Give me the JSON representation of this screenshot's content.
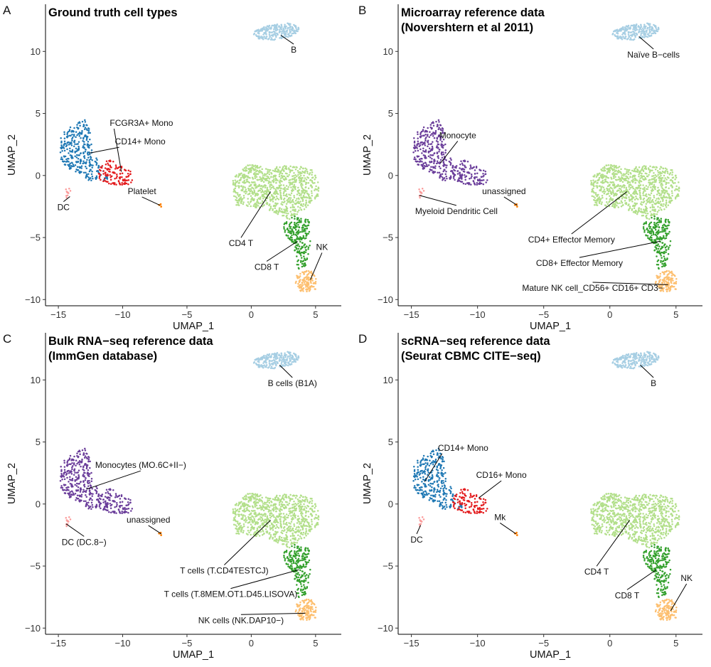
{
  "colors": {
    "B": "#a6cee3",
    "CD14_Mono": "#1f78b4",
    "FCGR3A_Mono": "#e31a1c",
    "Monocyte_purple": "#6a3d9a",
    "DC": "#fb9a99",
    "Platelet": "#ff7f00",
    "CD4_T": "#b2df8a",
    "CD8_T": "#33a02c",
    "NK": "#fdbf6f"
  },
  "chart_data": [
    {
      "panel": "A",
      "type": "scatter",
      "title_lines": [
        "Ground truth cell types"
      ],
      "xlabel": "UMAP_1",
      "ylabel": "UMAP_2",
      "xlim": [
        -16,
        7
      ],
      "ylim": [
        -10.5,
        13.8
      ],
      "xticks": [
        -15,
        -10,
        -5,
        0,
        5
      ],
      "yticks": [
        -10,
        -5,
        0,
        5,
        10
      ],
      "grid": false,
      "legend": "none",
      "clusters": [
        {
          "name": "B",
          "color_key": "B"
        },
        {
          "name": "CD14+ Mono",
          "color_key": "CD14_Mono"
        },
        {
          "name": "FCGR3A+ Mono",
          "color_key": "FCGR3A_Mono"
        },
        {
          "name": "DC",
          "color_key": "DC"
        },
        {
          "name": "Platelet",
          "color_key": "Platelet"
        },
        {
          "name": "CD4 T",
          "color_key": "CD4_T"
        },
        {
          "name": "CD8 T",
          "color_key": "CD8_T"
        },
        {
          "name": "NK",
          "color_key": "NK"
        }
      ],
      "annotations": [
        {
          "text": "B",
          "x": 3.3,
          "y": 9.9,
          "ax": 2.3,
          "ay": 11.3,
          "anchor": "middle"
        },
        {
          "text": "FCGR3A+ Mono",
          "x": -11.0,
          "y": 4.0,
          "ax": -10.1,
          "ay": 0.3,
          "anchor": "start"
        },
        {
          "text": "CD14+ Mono",
          "x": -10.6,
          "y": 2.5,
          "ax": -12.6,
          "ay": 1.8,
          "anchor": "start"
        },
        {
          "text": "Platelet",
          "x": -8.5,
          "y": -1.5,
          "ax": -7.1,
          "ay": -2.4,
          "anchor": "middle"
        },
        {
          "text": "DC",
          "x": -14.6,
          "y": -2.8,
          "ax": -14.1,
          "ay": -1.7,
          "anchor": "middle"
        },
        {
          "text": "CD4 T",
          "x": -0.8,
          "y": -5.7,
          "ax": 1.5,
          "ay": -1.3,
          "anchor": "middle"
        },
        {
          "text": "CD8 T",
          "x": 1.2,
          "y": -7.6,
          "ax": 3.6,
          "ay": -5.3,
          "anchor": "middle"
        },
        {
          "text": "NK",
          "x": 5.5,
          "y": -6.0,
          "ax": 4.6,
          "ay": -8.4,
          "anchor": "middle"
        }
      ]
    },
    {
      "panel": "B",
      "type": "scatter",
      "title_lines": [
        "Microarray reference data",
        "(Novershtern et al 2011)"
      ],
      "xlabel": "UMAP_1",
      "ylabel": "UMAP_2",
      "xlim": [
        -16,
        7
      ],
      "ylim": [
        -10.5,
        13.8
      ],
      "xticks": [
        -15,
        -10,
        -5,
        0,
        5
      ],
      "yticks": [
        -10,
        -5,
        0,
        5,
        10
      ],
      "grid": false,
      "legend": "none",
      "clusters": [
        {
          "name": "Naïve B−cells",
          "color_key": "B"
        },
        {
          "name": "Monocyte",
          "color_key": "Monocyte_purple"
        },
        {
          "name": "Monocyte",
          "color_key": "Monocyte_purple"
        },
        {
          "name": "Myeloid Dendritic Cell",
          "color_key": "DC"
        },
        {
          "name": "unassigned",
          "color_key": "Platelet"
        },
        {
          "name": "CD4+ Effector Memory",
          "color_key": "CD4_T"
        },
        {
          "name": "CD8+ Effector Memory",
          "color_key": "CD8_T"
        },
        {
          "name": "Mature NK cell_CD56+ CD16+ CD3−",
          "color_key": "NK"
        }
      ],
      "annotations": [
        {
          "text": "Naïve B−cells",
          "x": 3.3,
          "y": 9.5,
          "ax": 2.2,
          "ay": 11.2,
          "anchor": "middle"
        },
        {
          "text": "Monocyte",
          "x": -11.5,
          "y": 3.0,
          "ax": -12.8,
          "ay": 1.0,
          "anchor": "middle"
        },
        {
          "text": "unassigned",
          "x": -8.0,
          "y": -1.5,
          "ax": -7.0,
          "ay": -2.4,
          "anchor": "middle"
        },
        {
          "text": "Myeloid Dendritic Cell",
          "x": -11.6,
          "y": -3.1,
          "ax": -14.4,
          "ay": -1.6,
          "anchor": "middle"
        },
        {
          "text": "CD4+ Effector Memory",
          "x": -2.9,
          "y": -5.4,
          "ax": 1.3,
          "ay": -1.3,
          "anchor": "middle"
        },
        {
          "text": "CD8+ Effector Memory",
          "x": -2.3,
          "y": -7.3,
          "ax": 3.8,
          "ay": -5.3,
          "anchor": "middle"
        },
        {
          "text": "Mature NK cell_CD56+ CD16+ CD3−",
          "x": -1.3,
          "y": -9.3,
          "ax": 4.4,
          "ay": -8.8,
          "anchor": "middle"
        }
      ]
    },
    {
      "panel": "C",
      "type": "scatter",
      "title_lines": [
        "Bulk RNA−seq reference data",
        "(ImmGen database)"
      ],
      "xlabel": "UMAP_1",
      "ylabel": "UMAP_2",
      "xlim": [
        -16,
        7
      ],
      "ylim": [
        -10.5,
        13.8
      ],
      "xticks": [
        -15,
        -10,
        -5,
        0,
        5
      ],
      "yticks": [
        -10,
        -5,
        0,
        5,
        10
      ],
      "grid": false,
      "legend": "none",
      "clusters": [
        {
          "name": "B cells (B1A)",
          "color_key": "B"
        },
        {
          "name": "Monocytes (MO.6C+II−)",
          "color_key": "Monocyte_purple"
        },
        {
          "name": "Monocytes (MO.6C+II−)",
          "color_key": "Monocyte_purple"
        },
        {
          "name": "DC (DC.8−)",
          "color_key": "DC"
        },
        {
          "name": "unassigned",
          "color_key": "Platelet"
        },
        {
          "name": "T cells (T.CD4TESTCJ)",
          "color_key": "CD4_T"
        },
        {
          "name": "T cells (T.8MEM.OT1.D45.LISOVA)",
          "color_key": "CD8_T"
        },
        {
          "name": "NK cells (NK.DAP10−)",
          "color_key": "NK"
        }
      ],
      "annotations": [
        {
          "text": "B cells (B1A)",
          "x": 3.2,
          "y": 9.5,
          "ax": 2.2,
          "ay": 11.2,
          "anchor": "middle"
        },
        {
          "text": "Monocytes (MO.6C+II−)",
          "x": -8.6,
          "y": 2.9,
          "ax": -12.8,
          "ay": 1.2,
          "anchor": "middle"
        },
        {
          "text": "unassigned",
          "x": -8.0,
          "y": -1.5,
          "ax": -7.0,
          "ay": -2.4,
          "anchor": "middle"
        },
        {
          "text": "DC (DC.8−)",
          "x": -13.0,
          "y": -3.3,
          "ax": -14.4,
          "ay": -1.6,
          "anchor": "middle"
        },
        {
          "text": "T cells (T.CD4TESTCJ)",
          "x": -2.1,
          "y": -5.6,
          "ax": 1.5,
          "ay": -1.3,
          "anchor": "middle"
        },
        {
          "text": "T cells (T.8MEM.OT1.D45.LISOVA)",
          "x": -1.6,
          "y": -7.5,
          "ax": 3.7,
          "ay": -5.3,
          "anchor": "middle"
        },
        {
          "text": "NK cells (NK.DAP10−)",
          "x": -0.8,
          "y": -9.6,
          "ax": 4.2,
          "ay": -8.8,
          "anchor": "middle"
        }
      ]
    },
    {
      "panel": "D",
      "type": "scatter",
      "title_lines": [
        "scRNA−seq reference data",
        "(Seurat CBMC CITE−seq)"
      ],
      "xlabel": "UMAP_1",
      "ylabel": "UMAP_2",
      "xlim": [
        -16,
        7
      ],
      "ylim": [
        -10.5,
        13.8
      ],
      "xticks": [
        -15,
        -10,
        -5,
        0,
        5
      ],
      "yticks": [
        -10,
        -5,
        0,
        5,
        10
      ],
      "grid": false,
      "legend": "none",
      "clusters": [
        {
          "name": "B",
          "color_key": "B"
        },
        {
          "name": "CD14+ Mono",
          "color_key": "CD14_Mono"
        },
        {
          "name": "CD16+ Mono",
          "color_key": "FCGR3A_Mono"
        },
        {
          "name": "DC",
          "color_key": "DC"
        },
        {
          "name": "Mk",
          "color_key": "Platelet"
        },
        {
          "name": "CD4 T",
          "color_key": "CD4_T"
        },
        {
          "name": "CD8 T",
          "color_key": "CD8_T"
        },
        {
          "name": "NK",
          "color_key": "NK"
        }
      ],
      "annotations": [
        {
          "text": "B",
          "x": 3.3,
          "y": 9.5,
          "ax": 2.3,
          "ay": 11.2,
          "anchor": "middle"
        },
        {
          "text": "CD14+ Mono",
          "x": -13.0,
          "y": 4.3,
          "ax": -14.0,
          "ay": 1.8,
          "anchor": "start"
        },
        {
          "text": "CD16+ Mono",
          "x": -8.2,
          "y": 2.1,
          "ax": -9.9,
          "ay": 0.5,
          "anchor": "middle"
        },
        {
          "text": "Mk",
          "x": -8.3,
          "y": -1.3,
          "ax": -7.1,
          "ay": -2.4,
          "anchor": "middle"
        },
        {
          "text": "DC",
          "x": -14.6,
          "y": -3.1,
          "ax": -14.3,
          "ay": -1.7,
          "anchor": "middle"
        },
        {
          "text": "CD4 T",
          "x": -1.0,
          "y": -5.7,
          "ax": 1.5,
          "ay": -1.3,
          "anchor": "middle"
        },
        {
          "text": "CD8 T",
          "x": 1.3,
          "y": -7.6,
          "ax": 3.5,
          "ay": -5.3,
          "anchor": "middle"
        },
        {
          "text": "NK",
          "x": 5.8,
          "y": -6.2,
          "ax": 4.6,
          "ay": -8.6,
          "anchor": "middle"
        }
      ]
    }
  ]
}
